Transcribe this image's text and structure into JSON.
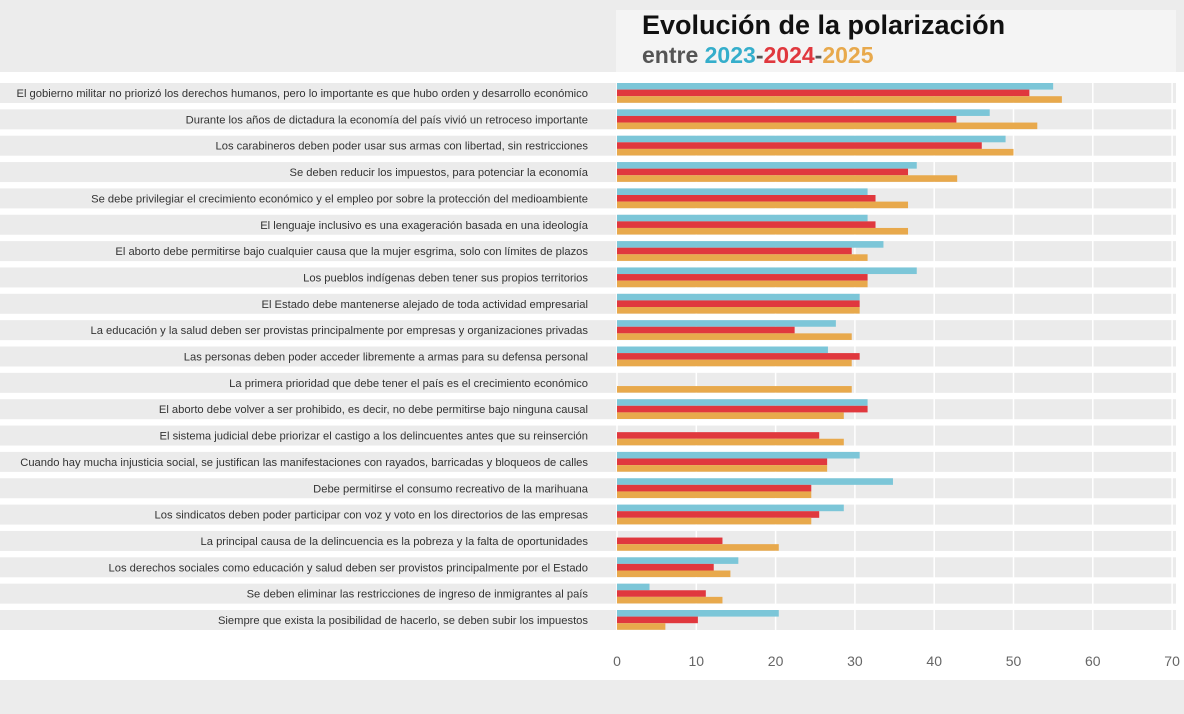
{
  "title": {
    "line1": "Evolución de la polarización",
    "prefix": "entre ",
    "years": [
      {
        "text": "2023",
        "color": "#35aecb"
      },
      {
        "text": "-",
        "color": "#555555"
      },
      {
        "text": "2024",
        "color": "#e0383e"
      },
      {
        "text": "-",
        "color": "#555555"
      },
      {
        "text": "2025",
        "color": "#e8a94c"
      }
    ]
  },
  "chart_data": {
    "type": "bar",
    "orientation": "horizontal",
    "xlim": [
      0,
      70
    ],
    "x_ticks": [
      0,
      10,
      20,
      30,
      40,
      50,
      60,
      70
    ],
    "grid": true,
    "categories": [
      "El gobierno militar no priorizó los derechos humanos, pero lo importante es que hubo orden y desarrollo económico",
      "Durante los años de dictadura la economía del país vivió un retroceso importante",
      "Los carabineros deben poder usar sus armas con libertad, sin restricciones",
      "Se deben reducir los impuestos, para potenciar la economía",
      "Se debe privilegiar el crecimiento económico y el empleo por sobre la protección del medioambiente",
      "El lenguaje inclusivo es una exageración basada en una ideología",
      "El aborto debe permitirse bajo cualquier causa que la mujer esgrima, solo con límites de plazos",
      "Los pueblos indígenas deben tener sus propios territorios",
      "El Estado debe mantenerse alejado de toda actividad empresarial",
      "La educación y la salud deben ser provistas principalmente por empresas y organizaciones privadas",
      "Las personas deben poder acceder libremente a armas para su defensa personal",
      "La primera prioridad que debe tener el país es el crecimiento económico",
      "El aborto debe volver a ser prohibido, es decir, no debe permitirse bajo ninguna causal",
      "El sistema judicial debe priorizar el castigo a los delincuentes antes que su reinserción",
      "Cuando hay mucha injusticia social, se justifican las manifestaciones con rayados, barricadas y bloqueos de calles",
      "Debe permitirse el consumo recreativo de la marihuana",
      "Los sindicatos deben poder participar con voz y voto en los directorios de las empresas",
      "La principal causa de la delincuencia es la pobreza y la falta de oportunidades",
      "Los derechos sociales como educación y salud deben ser provistos principalmente por el Estado",
      "Se deben eliminar las restricciones de ingreso de inmigrantes al país",
      "Siempre que exista la posibilidad de hacerlo, se deben subir los impuestos"
    ],
    "series": [
      {
        "label_ref": "2023",
        "color": "#7cc6d8",
        "values": [
          55,
          47,
          49,
          37.8,
          31.6,
          31.6,
          33.6,
          37.8,
          30.6,
          27.6,
          26.6,
          null,
          31.6,
          null,
          30.6,
          34.8,
          28.6,
          null,
          15.3,
          4.1,
          20.4
        ]
      },
      {
        "label_ref": "2024",
        "color": "#e0383e",
        "values": [
          52,
          42.8,
          46,
          36.7,
          32.6,
          32.6,
          29.6,
          31.6,
          30.6,
          22.4,
          30.6,
          null,
          31.6,
          25.5,
          26.5,
          24.5,
          25.5,
          13.3,
          12.2,
          11.2,
          10.2
        ]
      },
      {
        "label_ref": "2025",
        "color": "#e8a94c",
        "values": [
          56.1,
          53,
          50,
          42.9,
          36.7,
          36.7,
          31.6,
          31.6,
          30.6,
          29.6,
          29.6,
          29.6,
          28.6,
          28.6,
          26.5,
          24.5,
          24.5,
          20.4,
          14.3,
          13.3,
          6.1
        ]
      }
    ]
  }
}
